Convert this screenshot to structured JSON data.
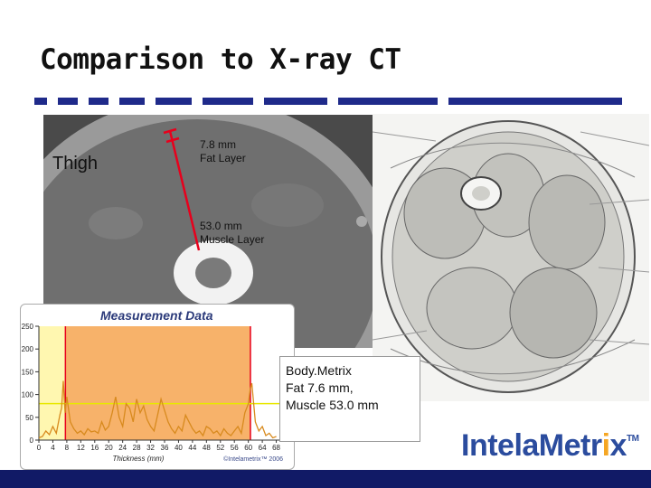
{
  "slide": {
    "title": "Comparison to X-ray CT",
    "thigh_label": "Thigh",
    "fat_label_line1": "7.8 mm",
    "fat_label_line2": "Fat Layer",
    "muscle_label_line1": "53.0 mm",
    "muscle_label_line2": "Muscle Layer"
  },
  "measurement": {
    "title": "Measurement Data",
    "y_ticks": [
      "250",
      "200",
      "150",
      "100",
      "50",
      "0"
    ],
    "x_ticks": [
      "0",
      "4",
      "8",
      "12",
      "16",
      "20",
      "24",
      "28",
      "32",
      "36",
      "40",
      "44",
      "48",
      "52",
      "56",
      "60",
      "64",
      "68"
    ],
    "xlabel": "Thickness (mm)",
    "footer": "©Intelametrix™ 2006"
  },
  "chart_data": {
    "type": "line",
    "title": "Measurement Data",
    "xlabel": "Thickness (mm)",
    "ylabel": "",
    "xlim": [
      0,
      72
    ],
    "ylim": [
      0,
      250
    ],
    "threshold": 80,
    "regions": [
      {
        "name": "fat",
        "from": 0,
        "to": 7.6,
        "color": "#fff7b0"
      },
      {
        "name": "muscle",
        "from": 7.6,
        "to": 60.6,
        "color": "#f7b26a"
      }
    ],
    "series": [
      {
        "color": "#d88a1e",
        "x": [
          0,
          1,
          2,
          3,
          4,
          5,
          6,
          6.5,
          7,
          7.5,
          8,
          9,
          10,
          11,
          12,
          13,
          14,
          15,
          16,
          17,
          18,
          19,
          20,
          21,
          22,
          23,
          24,
          25,
          26,
          27,
          28,
          29,
          30,
          31,
          32,
          33,
          34,
          35,
          36,
          37,
          38,
          39,
          40,
          41,
          42,
          43,
          44,
          45,
          46,
          47,
          48,
          49,
          50,
          51,
          52,
          53,
          54,
          55,
          56,
          57,
          58,
          59,
          60,
          60.5,
          61,
          62,
          63,
          64,
          65,
          66,
          67,
          68
        ],
        "values": [
          5,
          8,
          20,
          12,
          30,
          15,
          55,
          70,
          130,
          60,
          95,
          40,
          25,
          15,
          20,
          12,
          25,
          18,
          20,
          15,
          40,
          22,
          30,
          60,
          95,
          50,
          30,
          80,
          70,
          40,
          90,
          60,
          75,
          45,
          30,
          20,
          55,
          90,
          65,
          40,
          25,
          15,
          30,
          20,
          55,
          40,
          25,
          15,
          20,
          10,
          30,
          25,
          15,
          20,
          10,
          25,
          15,
          10,
          20,
          30,
          15,
          60,
          80,
          110,
          125,
          40,
          20,
          30,
          10,
          15,
          5,
          8
        ]
      }
    ]
  },
  "body_metrix": {
    "line1": "Body.Metrix",
    "line2": "Fat 7.6 mm,",
    "line3": "Muscle 53.0 mm"
  },
  "logo": {
    "part1": "IntelaMetr",
    "part2": "i",
    "part3": "x",
    "tm": "TM"
  },
  "colors": {
    "accent": "#1f2a8a",
    "logo_blue": "#2b4c9e",
    "logo_orange": "#f5a623",
    "measure_line": "#e8001c"
  }
}
